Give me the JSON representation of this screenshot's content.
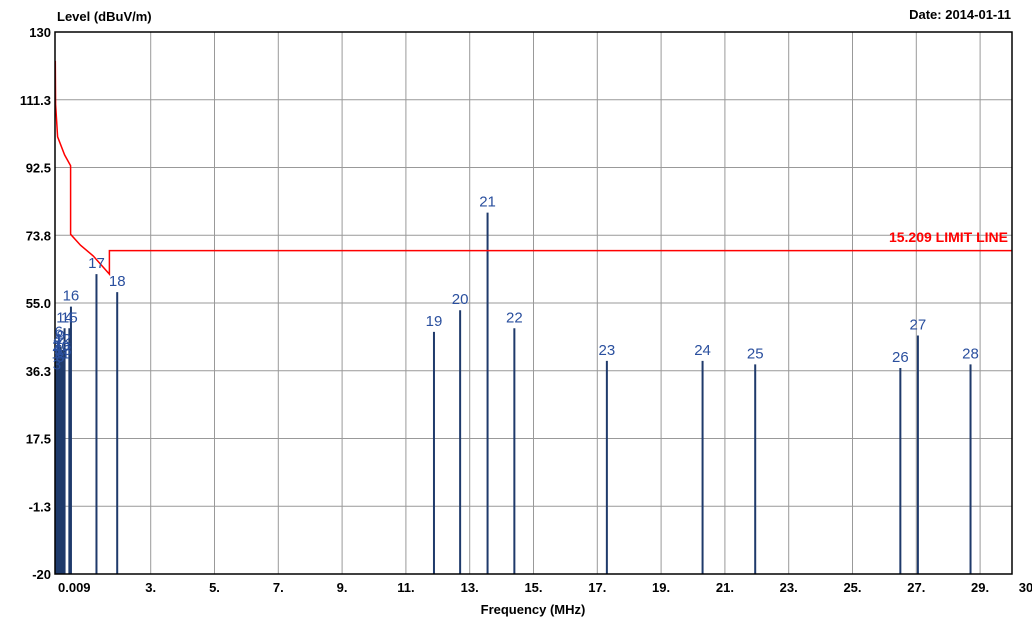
{
  "chart_data": {
    "type": "line",
    "title": "",
    "ylabel": "Level (dBuV/m)",
    "xlabel": "Frequency (MHz)",
    "date_label": "Date: 2014-01-11",
    "ylim": [
      -20,
      130
    ],
    "xlim": [
      0.009,
      30
    ],
    "yticks": [
      "130",
      "111.3",
      "92.5",
      "73.8",
      "55.0",
      "36.3",
      "17.5",
      "-1.3",
      "-20"
    ],
    "xticks": [
      {
        "v": 0.009,
        "label": "0.009"
      },
      {
        "v": 3,
        "label": "3."
      },
      {
        "v": 5,
        "label": "5."
      },
      {
        "v": 7,
        "label": "7."
      },
      {
        "v": 9,
        "label": "9."
      },
      {
        "v": 11,
        "label": "11."
      },
      {
        "v": 13,
        "label": "13."
      },
      {
        "v": 15,
        "label": "15."
      },
      {
        "v": 17,
        "label": "17."
      },
      {
        "v": 19,
        "label": "19."
      },
      {
        "v": 21,
        "label": "21."
      },
      {
        "v": 23,
        "label": "23."
      },
      {
        "v": 25,
        "label": "25."
      },
      {
        "v": 27,
        "label": "27."
      },
      {
        "v": 29,
        "label": "29."
      },
      {
        "v": 30,
        "label": "30"
      }
    ],
    "grid": true,
    "colors": {
      "limit": "#ff0000",
      "marker": "#1f3a6b",
      "label": "#2a4f9e",
      "grid": "#999999"
    },
    "limit_line": {
      "name": "15.209 LIMIT LINE",
      "points": [
        [
          0.009,
          122
        ],
        [
          0.02,
          110
        ],
        [
          0.08,
          101
        ],
        [
          0.3,
          96
        ],
        [
          0.49,
          93
        ],
        [
          0.49,
          74
        ],
        [
          0.8,
          71
        ],
        [
          1.2,
          68
        ],
        [
          1.705,
          63
        ],
        [
          1.705,
          69.5
        ],
        [
          30,
          69.5
        ]
      ]
    },
    "markers": [
      {
        "n": "1",
        "x": 0.02,
        "y": 38
      },
      {
        "n": "2",
        "x": 0.04,
        "y": 40
      },
      {
        "n": "3",
        "x": 0.06,
        "y": 35
      },
      {
        "n": "4",
        "x": 0.08,
        "y": 42
      },
      {
        "n": "5",
        "x": 0.1,
        "y": 39
      },
      {
        "n": "6",
        "x": 0.12,
        "y": 44
      },
      {
        "n": "7",
        "x": 0.14,
        "y": 41
      },
      {
        "n": "8",
        "x": 0.16,
        "y": 37
      },
      {
        "n": "9",
        "x": 0.18,
        "y": 43
      },
      {
        "n": "10",
        "x": 0.2,
        "y": 40
      },
      {
        "n": "11",
        "x": 0.22,
        "y": 38
      },
      {
        "n": "12",
        "x": 0.24,
        "y": 42
      },
      {
        "n": "13",
        "x": 0.26,
        "y": 39
      },
      {
        "n": "14",
        "x": 0.3,
        "y": 48
      },
      {
        "n": "15",
        "x": 0.45,
        "y": 48
      },
      {
        "n": "16",
        "x": 0.5,
        "y": 54
      },
      {
        "n": "17",
        "x": 1.3,
        "y": 63
      },
      {
        "n": "18",
        "x": 1.95,
        "y": 58
      },
      {
        "n": "19",
        "x": 11.88,
        "y": 47
      },
      {
        "n": "20",
        "x": 12.7,
        "y": 53
      },
      {
        "n": "21",
        "x": 13.56,
        "y": 80
      },
      {
        "n": "22",
        "x": 14.4,
        "y": 48
      },
      {
        "n": "23",
        "x": 17.3,
        "y": 39
      },
      {
        "n": "24",
        "x": 20.3,
        "y": 39
      },
      {
        "n": "25",
        "x": 21.95,
        "y": 38
      },
      {
        "n": "26",
        "x": 26.5,
        "y": 37
      },
      {
        "n": "27",
        "x": 27.05,
        "y": 46
      },
      {
        "n": "28",
        "x": 28.7,
        "y": 38
      }
    ]
  }
}
